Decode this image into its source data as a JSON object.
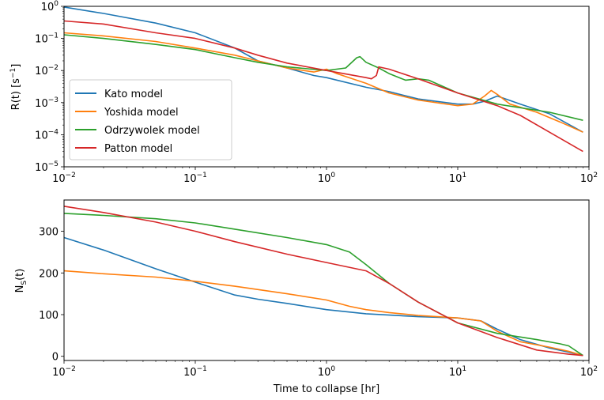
{
  "chart_data": [
    {
      "type": "line",
      "xscale": "log",
      "yscale": "log",
      "xlim": [
        0.01,
        100
      ],
      "ylim": [
        1e-05,
        1
      ],
      "xlabel": "",
      "ylabel_main": "R(t) [s",
      "ylabel_exp": "−1",
      "ylabel_close": "]",
      "x_ticks": [
        {
          "value": 0.01,
          "base": "10",
          "exp": "−2"
        },
        {
          "value": 0.1,
          "base": "10",
          "exp": "−1"
        },
        {
          "value": 1,
          "base": "10",
          "exp": "0"
        },
        {
          "value": 10,
          "base": "10",
          "exp": "1"
        },
        {
          "value": 100,
          "base": "10",
          "exp": "2"
        }
      ],
      "y_ticks": [
        {
          "value": 1,
          "base": "10",
          "exp": "0"
        },
        {
          "value": 0.1,
          "base": "10",
          "exp": "−1"
        },
        {
          "value": 0.01,
          "base": "10",
          "exp": "−2"
        },
        {
          "value": 0.001,
          "base": "10",
          "exp": "−3"
        },
        {
          "value": 0.0001,
          "base": "10",
          "exp": "−4"
        },
        {
          "value": 1e-05,
          "base": "10",
          "exp": "−5"
        }
      ],
      "legend_position": "lower-left",
      "series": [
        {
          "name": "Kato model",
          "color": "#1f77b4",
          "points": [
            [
              0.01,
              0.95
            ],
            [
              0.02,
              0.6
            ],
            [
              0.05,
              0.3
            ],
            [
              0.1,
              0.15
            ],
            [
              0.2,
              0.05
            ],
            [
              0.3,
              0.02
            ],
            [
              0.5,
              0.012
            ],
            [
              0.8,
              0.007
            ],
            [
              1,
              0.006
            ],
            [
              2,
              0.003
            ],
            [
              3,
              0.0022
            ],
            [
              5,
              0.0013
            ],
            [
              10,
              0.0009
            ],
            [
              13,
              0.0009
            ],
            [
              16,
              0.0011
            ],
            [
              20,
              0.0016
            ],
            [
              30,
              0.0009
            ],
            [
              50,
              0.00045
            ],
            [
              90,
              0.00012
            ]
          ]
        },
        {
          "name": "Yoshida model",
          "color": "#ff7f0e",
          "points": [
            [
              0.01,
              0.15
            ],
            [
              0.02,
              0.12
            ],
            [
              0.05,
              0.08
            ],
            [
              0.1,
              0.05
            ],
            [
              0.2,
              0.03
            ],
            [
              0.3,
              0.02
            ],
            [
              0.5,
              0.012
            ],
            [
              0.8,
              0.009
            ],
            [
              1,
              0.011
            ],
            [
              1.2,
              0.008
            ],
            [
              2,
              0.004
            ],
            [
              3,
              0.002
            ],
            [
              5,
              0.0012
            ],
            [
              10,
              0.0008
            ],
            [
              13,
              0.0009
            ],
            [
              16,
              0.0016
            ],
            [
              18,
              0.0024
            ],
            [
              20,
              0.0018
            ],
            [
              25,
              0.0009
            ],
            [
              40,
              0.0005
            ],
            [
              60,
              0.00025
            ],
            [
              90,
              0.00012
            ]
          ]
        },
        {
          "name": "Odrzywolek model",
          "color": "#2ca02c",
          "points": [
            [
              0.01,
              0.13
            ],
            [
              0.02,
              0.1
            ],
            [
              0.05,
              0.065
            ],
            [
              0.1,
              0.045
            ],
            [
              0.2,
              0.025
            ],
            [
              0.3,
              0.018
            ],
            [
              0.5,
              0.013
            ],
            [
              1,
              0.01
            ],
            [
              1.4,
              0.012
            ],
            [
              1.7,
              0.025
            ],
            [
              1.8,
              0.027
            ],
            [
              2,
              0.018
            ],
            [
              2.5,
              0.012
            ],
            [
              3,
              0.008
            ],
            [
              4,
              0.005
            ],
            [
              5,
              0.0055
            ],
            [
              6,
              0.005
            ],
            [
              10,
              0.002
            ],
            [
              20,
              0.0009
            ],
            [
              50,
              0.0005
            ],
            [
              90,
              0.00028
            ]
          ]
        },
        {
          "name": "Patton model",
          "color": "#d62728",
          "points": [
            [
              0.01,
              0.35
            ],
            [
              0.02,
              0.28
            ],
            [
              0.05,
              0.15
            ],
            [
              0.1,
              0.1
            ],
            [
              0.2,
              0.05
            ],
            [
              0.3,
              0.03
            ],
            [
              0.5,
              0.017
            ],
            [
              1,
              0.01
            ],
            [
              2,
              0.006
            ],
            [
              2.2,
              0.0055
            ],
            [
              2.4,
              0.007
            ],
            [
              2.5,
              0.013
            ],
            [
              3,
              0.011
            ],
            [
              5,
              0.0055
            ],
            [
              10,
              0.002
            ],
            [
              20,
              0.0008
            ],
            [
              30,
              0.0004
            ],
            [
              50,
              0.00012
            ],
            [
              90,
              3e-05
            ]
          ]
        }
      ]
    },
    {
      "type": "line",
      "xscale": "log",
      "yscale": "linear",
      "xlim": [
        0.01,
        100
      ],
      "ylim": [
        -10,
        375
      ],
      "xlabel": "Time to collapse [hr]",
      "ylabel_main": "N",
      "ylabel_sub": "S",
      "ylabel_close": "(t)",
      "x_ticks": [
        {
          "value": 0.01,
          "base": "10",
          "exp": "−2"
        },
        {
          "value": 0.1,
          "base": "10",
          "exp": "−1"
        },
        {
          "value": 1,
          "base": "10",
          "exp": "0"
        },
        {
          "value": 10,
          "base": "10",
          "exp": "1"
        },
        {
          "value": 100,
          "base": "10",
          "exp": "2"
        }
      ],
      "y_ticks": [
        {
          "value": 0,
          "label": "0"
        },
        {
          "value": 100,
          "label": "100"
        },
        {
          "value": 200,
          "label": "200"
        },
        {
          "value": 300,
          "label": "300"
        }
      ],
      "series": [
        {
          "name": "Kato model",
          "color": "#1f77b4",
          "points": [
            [
              0.01,
              285
            ],
            [
              0.02,
              255
            ],
            [
              0.05,
              210
            ],
            [
              0.1,
              178
            ],
            [
              0.2,
              147
            ],
            [
              0.3,
              137
            ],
            [
              0.5,
              127
            ],
            [
              1,
              112
            ],
            [
              2,
              102
            ],
            [
              5,
              95
            ],
            [
              10,
              92
            ],
            [
              15,
              85
            ],
            [
              20,
              65
            ],
            [
              30,
              40
            ],
            [
              50,
              20
            ],
            [
              70,
              10
            ],
            [
              90,
              2
            ]
          ]
        },
        {
          "name": "Yoshida model",
          "color": "#ff7f0e",
          "points": [
            [
              0.01,
              205
            ],
            [
              0.02,
              198
            ],
            [
              0.05,
              190
            ],
            [
              0.1,
              180
            ],
            [
              0.2,
              168
            ],
            [
              0.5,
              150
            ],
            [
              1,
              135
            ],
            [
              1.5,
              120
            ],
            [
              2,
              112
            ],
            [
              3,
              105
            ],
            [
              5,
              98
            ],
            [
              10,
              92
            ],
            [
              15,
              85
            ],
            [
              20,
              60
            ],
            [
              30,
              35
            ],
            [
              50,
              22
            ],
            [
              70,
              12
            ],
            [
              90,
              2
            ]
          ]
        },
        {
          "name": "Odrzywolek model",
          "color": "#2ca02c",
          "points": [
            [
              0.01,
              343
            ],
            [
              0.02,
              338
            ],
            [
              0.05,
              330
            ],
            [
              0.1,
              320
            ],
            [
              0.2,
              305
            ],
            [
              0.5,
              285
            ],
            [
              1,
              268
            ],
            [
              1.5,
              250
            ],
            [
              2,
              220
            ],
            [
              3,
              175
            ],
            [
              5,
              130
            ],
            [
              10,
              80
            ],
            [
              20,
              55
            ],
            [
              40,
              40
            ],
            [
              60,
              30
            ],
            [
              70,
              25
            ],
            [
              90,
              2
            ]
          ]
        },
        {
          "name": "Patton model",
          "color": "#d62728",
          "points": [
            [
              0.01,
              360
            ],
            [
              0.02,
              345
            ],
            [
              0.05,
              322
            ],
            [
              0.1,
              300
            ],
            [
              0.2,
              275
            ],
            [
              0.5,
              245
            ],
            [
              1,
              225
            ],
            [
              2,
              205
            ],
            [
              3,
              175
            ],
            [
              5,
              130
            ],
            [
              10,
              80
            ],
            [
              20,
              45
            ],
            [
              40,
              15
            ],
            [
              70,
              5
            ],
            [
              90,
              2
            ]
          ]
        }
      ]
    }
  ]
}
